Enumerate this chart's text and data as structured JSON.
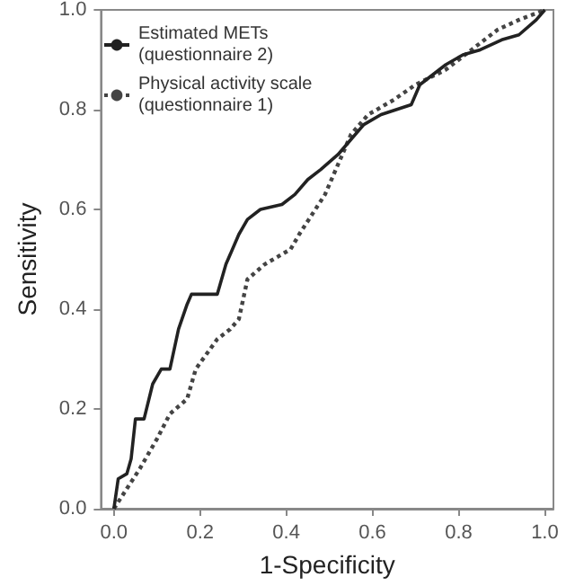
{
  "chart_data": {
    "type": "line",
    "xlabel": "1-Specificity",
    "ylabel": "Sensitivity",
    "xlim": [
      -0.03,
      1.02
    ],
    "ylim": [
      0,
      1
    ],
    "xticks": [
      {
        "value": 0,
        "label": "0.0"
      },
      {
        "value": 0.2,
        "label": "0.2"
      },
      {
        "value": 0.4,
        "label": "0.4"
      },
      {
        "value": 0.6,
        "label": "0.6"
      },
      {
        "value": 0.8,
        "label": "0.8"
      },
      {
        "value": 1,
        "label": "1.0"
      }
    ],
    "yticks": [
      {
        "value": 0,
        "label": "0.0"
      },
      {
        "value": 0.2,
        "label": "0.2"
      },
      {
        "value": 0.4,
        "label": "0.4"
      },
      {
        "value": 0.6,
        "label": "0.6"
      },
      {
        "value": 0.8,
        "label": "0.8"
      },
      {
        "value": 1,
        "label": "1.0"
      }
    ],
    "grid": false,
    "legend": "top left",
    "marker": "none",
    "series": [
      {
        "name": "Estimated METs\n(questionnaire 2)",
        "color": "#222222",
        "line_style": "solid",
        "x": [
          0,
          0.01,
          0.03,
          0.04,
          0.05,
          0.07,
          0.09,
          0.11,
          0.13,
          0.15,
          0.17,
          0.18,
          0.24,
          0.26,
          0.29,
          0.31,
          0.34,
          0.39,
          0.42,
          0.45,
          0.48,
          0.52,
          0.55,
          0.58,
          0.62,
          0.69,
          0.71,
          0.77,
          0.81,
          0.85,
          0.9,
          0.94,
          0.98,
          1
        ],
        "values": [
          0,
          0.06,
          0.07,
          0.1,
          0.18,
          0.18,
          0.25,
          0.28,
          0.28,
          0.36,
          0.41,
          0.43,
          0.43,
          0.49,
          0.55,
          0.58,
          0.6,
          0.61,
          0.63,
          0.66,
          0.68,
          0.71,
          0.74,
          0.77,
          0.79,
          0.81,
          0.85,
          0.89,
          0.91,
          0.92,
          0.94,
          0.95,
          0.98,
          1
        ]
      },
      {
        "name": "Physical activity scale\n(questionnaire 1)",
        "color": "#444444",
        "line_style": "dotted",
        "x": [
          0,
          0.03,
          0.06,
          0.1,
          0.13,
          0.17,
          0.19,
          0.24,
          0.27,
          0.29,
          0.31,
          0.35,
          0.41,
          0.43,
          0.49,
          0.52,
          0.55,
          0.59,
          0.65,
          0.7,
          0.77,
          0.83,
          0.89,
          0.94,
          1
        ],
        "values": [
          0,
          0.04,
          0.08,
          0.14,
          0.19,
          0.22,
          0.28,
          0.34,
          0.36,
          0.38,
          0.46,
          0.49,
          0.52,
          0.55,
          0.63,
          0.69,
          0.75,
          0.79,
          0.82,
          0.85,
          0.88,
          0.92,
          0.96,
          0.98,
          1
        ]
      }
    ]
  }
}
